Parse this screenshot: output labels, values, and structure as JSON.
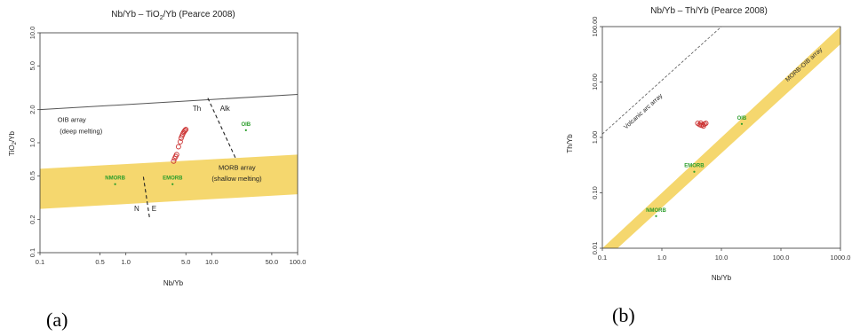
{
  "panel_labels": {
    "a": "(a)",
    "b": "(b)"
  },
  "chart_data": [
    {
      "type": "scatter",
      "title": "Nb/Yb – TiO2/Yb (Pearce 2008)",
      "xlabel": "Nb/Yb",
      "ylabel": "TiO2/Yb",
      "x_scale": "log",
      "y_scale": "log",
      "xlim": [
        0.1,
        100
      ],
      "ylim": [
        0.1,
        10
      ],
      "x_ticks": [
        0.1,
        0.5,
        1.0,
        5.0,
        10.0,
        50.0,
        100.0
      ],
      "x_tick_labels": [
        "0.1",
        "0.5",
        "1.0",
        "5.0",
        "10.0",
        "50.0",
        "100.0"
      ],
      "y_ticks": [
        0.1,
        0.2,
        0.5,
        1.0,
        2.0,
        5.0,
        10.0
      ],
      "y_tick_labels": [
        "0.1",
        "0.2",
        "0.5",
        "1.0",
        "2.0",
        "5.0",
        "10.0"
      ],
      "grid": false,
      "colors": {
        "band": "#f5d76e",
        "samples": "#cc3333",
        "references": "#2a9d2a",
        "lines": "#555555"
      },
      "band": {
        "name": "MORB array",
        "lower": [
          [
            0.1,
            0.25
          ],
          [
            100,
            0.34
          ]
        ],
        "upper": [
          [
            0.1,
            0.58
          ],
          [
            100,
            0.78
          ]
        ]
      },
      "oib_line": [
        [
          0.1,
          2.0
        ],
        [
          100,
          2.75
        ]
      ],
      "boundary_th_alk": [
        [
          9.0,
          2.55
        ],
        [
          19.0,
          0.72
        ]
      ],
      "boundary_n_e": [
        [
          1.6,
          0.49
        ],
        [
          1.9,
          0.2
        ]
      ],
      "series": [
        {
          "name": "",
          "points": [
            [
              3.6,
              0.68
            ],
            [
              3.7,
              0.72
            ],
            [
              3.8,
              0.75
            ],
            [
              3.9,
              0.78
            ],
            [
              4.1,
              0.92
            ],
            [
              4.3,
              1.02
            ],
            [
              4.4,
              1.1
            ],
            [
              4.5,
              1.15
            ],
            [
              4.6,
              1.2
            ],
            [
              4.7,
              1.24
            ],
            [
              4.8,
              1.27
            ],
            [
              4.9,
              1.3
            ],
            [
              5.0,
              1.32
            ]
          ]
        }
      ],
      "reference_points": [
        {
          "label": "NMORB",
          "x": 0.75,
          "y": 0.42
        },
        {
          "label": "EMORB",
          "x": 3.5,
          "y": 0.42
        },
        {
          "label": "OIB",
          "x": 25,
          "y": 1.3
        }
      ],
      "annotations": {
        "oib_array": "OIB array",
        "oib_array_sub": "(deep melting)",
        "morb_array": "MORB array",
        "morb_array_sub": "(shallow melting)",
        "th": "Th",
        "alk": "Alk",
        "n": "N",
        "e": "E"
      }
    },
    {
      "type": "scatter",
      "title": "Nb/Yb – Th/Yb (Pearce 2008)",
      "xlabel": "Nb/Yb",
      "ylabel": "Th/Yb",
      "x_scale": "log",
      "y_scale": "log",
      "xlim": [
        0.1,
        1000
      ],
      "ylim": [
        0.01,
        100
      ],
      "x_ticks": [
        0.1,
        1.0,
        10.0,
        100.0,
        1000.0
      ],
      "x_tick_labels": [
        "0.1",
        "1.0",
        "10.0",
        "100.0",
        "1000.0"
      ],
      "y_ticks": [
        0.01,
        0.1,
        1.0,
        10.0,
        100.0
      ],
      "y_tick_labels": [
        "0.01",
        "0.10",
        "1.00",
        "10.00",
        "100.00"
      ],
      "grid": false,
      "colors": {
        "band": "#f5d76e",
        "samples": "#cc3333",
        "references": "#2a9d2a",
        "lines": "#555555"
      },
      "band": {
        "name": "MORB-OIB array",
        "lower": [
          [
            0.18,
            0.01
          ],
          [
            1000,
            48
          ]
        ],
        "upper": [
          [
            0.1,
            0.01
          ],
          [
            1000,
            100
          ]
        ]
      },
      "volcanic_arc_line": [
        [
          0.1,
          1.15
        ],
        [
          10,
          100
        ]
      ],
      "series": [
        {
          "name": "",
          "points": [
            [
              4.0,
              1.8
            ],
            [
              4.3,
              1.7
            ],
            [
              4.6,
              1.65
            ],
            [
              4.9,
              1.7
            ],
            [
              5.2,
              1.75
            ],
            [
              5.5,
              1.8
            ],
            [
              4.5,
              1.82
            ],
            [
              5.0,
              1.6
            ]
          ]
        }
      ],
      "reference_points": [
        {
          "label": "NMORB",
          "x": 0.8,
          "y": 0.038
        },
        {
          "label": "EMORB",
          "x": 3.5,
          "y": 0.24
        },
        {
          "label": "OIB",
          "x": 22,
          "y": 1.75
        }
      ],
      "annotations": {
        "volcanic_arc_array": "Volcanic arc array",
        "morb_oib_array": "MORB-OIB array"
      }
    }
  ]
}
